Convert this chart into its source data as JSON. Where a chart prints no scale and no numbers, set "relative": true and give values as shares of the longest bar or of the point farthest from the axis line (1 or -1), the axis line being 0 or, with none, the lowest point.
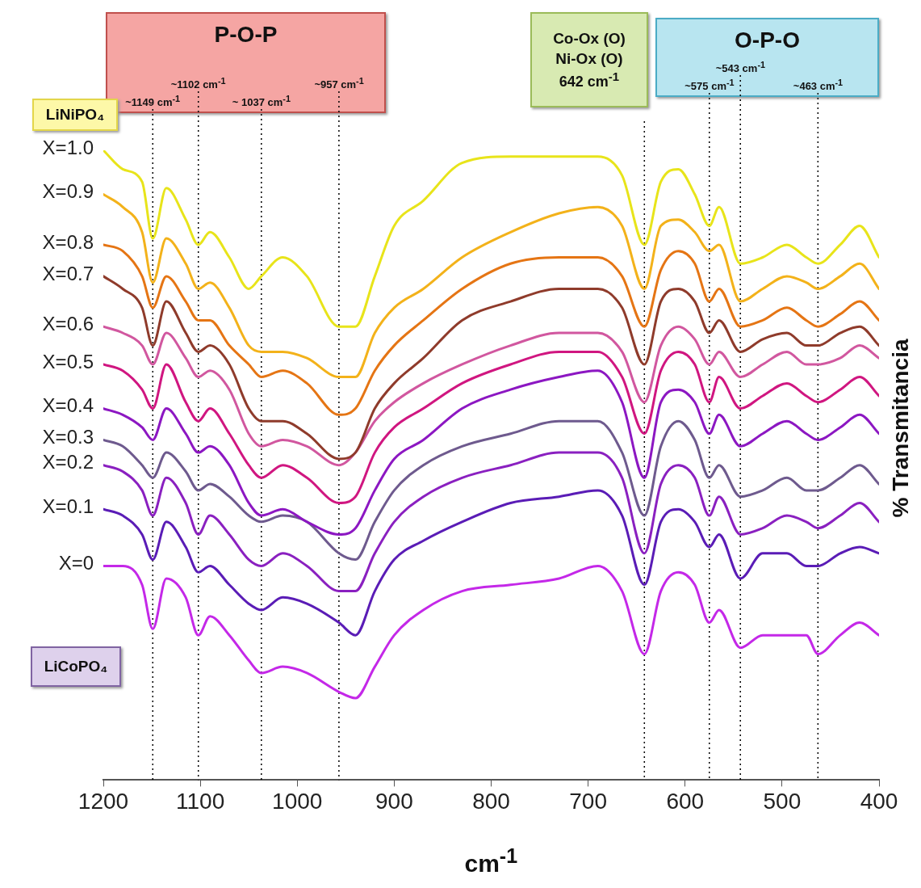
{
  "chart_data": {
    "type": "line",
    "relative": true,
    "xlabel": "cm$^{-1}$",
    "ylabel": "% Transmitancia",
    "legend": false,
    "grid": false,
    "marker": "none",
    "line_style": "solid",
    "xlim": [
      1200,
      400
    ],
    "xticks": [
      1200,
      1100,
      1000,
      900,
      800,
      700,
      600,
      500,
      400
    ],
    "x": [
      1200,
      1180,
      1160,
      1149,
      1135,
      1115,
      1102,
      1090,
      1070,
      1050,
      1037,
      1015,
      990,
      957,
      940,
      920,
      900,
      870,
      830,
      780,
      730,
      690,
      665,
      642,
      625,
      607,
      590,
      575,
      565,
      543,
      520,
      495,
      475,
      463,
      440,
      420,
      400
    ],
    "series": [
      {
        "name": "X=1.0",
        "color": "#e8e41a",
        "values": [
          1.0,
          0.97,
          0.95,
          0.86,
          0.94,
          0.89,
          0.85,
          0.87,
          0.83,
          0.78,
          0.8,
          0.83,
          0.8,
          0.72,
          0.72,
          0.8,
          0.88,
          0.92,
          0.98,
          0.99,
          0.99,
          0.99,
          0.96,
          0.85,
          0.95,
          0.97,
          0.93,
          0.88,
          0.91,
          0.82,
          0.83,
          0.85,
          0.83,
          0.82,
          0.85,
          0.88,
          0.83
        ]
      },
      {
        "name": "X=0.9",
        "color": "#f3b21a",
        "values": [
          0.93,
          0.91,
          0.87,
          0.79,
          0.86,
          0.82,
          0.78,
          0.79,
          0.75,
          0.69,
          0.68,
          0.68,
          0.67,
          0.64,
          0.64,
          0.71,
          0.75,
          0.78,
          0.83,
          0.87,
          0.9,
          0.91,
          0.88,
          0.78,
          0.88,
          0.89,
          0.87,
          0.84,
          0.85,
          0.76,
          0.78,
          0.8,
          0.79,
          0.78,
          0.8,
          0.82,
          0.78
        ]
      },
      {
        "name": "X=0.8",
        "color": "#e57514",
        "values": [
          0.85,
          0.84,
          0.8,
          0.75,
          0.8,
          0.76,
          0.73,
          0.73,
          0.69,
          0.66,
          0.64,
          0.65,
          0.63,
          0.58,
          0.59,
          0.65,
          0.69,
          0.73,
          0.78,
          0.82,
          0.83,
          0.83,
          0.8,
          0.72,
          0.81,
          0.84,
          0.82,
          0.76,
          0.78,
          0.72,
          0.73,
          0.75,
          0.73,
          0.72,
          0.74,
          0.76,
          0.73
        ]
      },
      {
        "name": "X=0.7",
        "color": "#8f3b2b",
        "values": [
          0.8,
          0.78,
          0.75,
          0.69,
          0.76,
          0.71,
          0.68,
          0.69,
          0.66,
          0.59,
          0.57,
          0.57,
          0.55,
          0.51,
          0.52,
          0.59,
          0.63,
          0.67,
          0.73,
          0.76,
          0.78,
          0.78,
          0.75,
          0.66,
          0.76,
          0.78,
          0.76,
          0.71,
          0.73,
          0.68,
          0.7,
          0.71,
          0.69,
          0.69,
          0.71,
          0.72,
          0.69
        ]
      },
      {
        "name": "X=0.6",
        "color": "#d1579f",
        "values": [
          0.72,
          0.71,
          0.69,
          0.66,
          0.71,
          0.67,
          0.64,
          0.65,
          0.62,
          0.55,
          0.53,
          0.54,
          0.53,
          0.5,
          0.52,
          0.57,
          0.6,
          0.63,
          0.66,
          0.69,
          0.71,
          0.71,
          0.68,
          0.6,
          0.69,
          0.72,
          0.7,
          0.66,
          0.68,
          0.64,
          0.66,
          0.68,
          0.66,
          0.66,
          0.67,
          0.69,
          0.67
        ]
      },
      {
        "name": "X=0.5",
        "color": "#d01680",
        "values": [
          0.66,
          0.65,
          0.62,
          0.59,
          0.66,
          0.6,
          0.57,
          0.59,
          0.55,
          0.5,
          0.48,
          0.5,
          0.48,
          0.44,
          0.45,
          0.52,
          0.56,
          0.59,
          0.63,
          0.66,
          0.68,
          0.68,
          0.64,
          0.55,
          0.65,
          0.68,
          0.66,
          0.6,
          0.64,
          0.59,
          0.61,
          0.63,
          0.61,
          0.6,
          0.62,
          0.64,
          0.61
        ]
      },
      {
        "name": "X=0.4",
        "color": "#8c17c2",
        "values": [
          0.59,
          0.58,
          0.56,
          0.54,
          0.59,
          0.55,
          0.52,
          0.53,
          0.5,
          0.44,
          0.42,
          0.43,
          0.41,
          0.39,
          0.4,
          0.46,
          0.51,
          0.54,
          0.59,
          0.62,
          0.64,
          0.65,
          0.6,
          0.48,
          0.6,
          0.62,
          0.6,
          0.55,
          0.58,
          0.53,
          0.55,
          0.57,
          0.55,
          0.54,
          0.56,
          0.58,
          0.55
        ]
      },
      {
        "name": "X=0.3",
        "color": "#6e5a8e",
        "values": [
          0.54,
          0.53,
          0.5,
          0.48,
          0.52,
          0.49,
          0.46,
          0.47,
          0.45,
          0.42,
          0.41,
          0.42,
          0.41,
          0.36,
          0.35,
          0.41,
          0.46,
          0.5,
          0.53,
          0.55,
          0.57,
          0.57,
          0.52,
          0.42,
          0.53,
          0.57,
          0.54,
          0.48,
          0.5,
          0.45,
          0.46,
          0.48,
          0.46,
          0.46,
          0.48,
          0.5,
          0.47
        ]
      },
      {
        "name": "X=0.2",
        "color": "#8a20c0",
        "values": [
          0.5,
          0.49,
          0.46,
          0.42,
          0.48,
          0.44,
          0.39,
          0.42,
          0.39,
          0.35,
          0.34,
          0.36,
          0.34,
          0.3,
          0.3,
          0.36,
          0.41,
          0.45,
          0.48,
          0.5,
          0.52,
          0.52,
          0.48,
          0.36,
          0.47,
          0.5,
          0.48,
          0.42,
          0.45,
          0.39,
          0.4,
          0.42,
          0.41,
          0.4,
          0.42,
          0.44,
          0.41
        ]
      },
      {
        "name": "X=0.1",
        "color": "#5a1cb6",
        "values": [
          0.43,
          0.42,
          0.39,
          0.35,
          0.41,
          0.37,
          0.33,
          0.34,
          0.31,
          0.28,
          0.27,
          0.29,
          0.28,
          0.25,
          0.23,
          0.3,
          0.35,
          0.38,
          0.41,
          0.44,
          0.45,
          0.46,
          0.42,
          0.31,
          0.41,
          0.43,
          0.41,
          0.37,
          0.39,
          0.32,
          0.36,
          0.36,
          0.34,
          0.34,
          0.36,
          0.37,
          0.36
        ]
      },
      {
        "name": "X=0",
        "color": "#c428e8",
        "values": [
          0.34,
          0.34,
          0.31,
          0.24,
          0.32,
          0.29,
          0.23,
          0.26,
          0.23,
          0.19,
          0.17,
          0.18,
          0.17,
          0.14,
          0.13,
          0.18,
          0.23,
          0.27,
          0.3,
          0.31,
          0.32,
          0.34,
          0.3,
          0.2,
          0.3,
          0.33,
          0.31,
          0.25,
          0.27,
          0.21,
          0.23,
          0.23,
          0.23,
          0.2,
          0.23,
          0.25,
          0.23
        ]
      }
    ],
    "ref_lines": [
      {
        "axis": "x",
        "value": 1149,
        "label": "~1149 cm$^{-1}$",
        "color": "#000000",
        "line_style": "dotted"
      },
      {
        "axis": "x",
        "value": 1102,
        "label": "~1102 cm$^{-1}$",
        "color": "#000000",
        "line_style": "dotted"
      },
      {
        "axis": "x",
        "value": 1037,
        "label": "~ 1037 cm$^{-1}$",
        "color": "#000000",
        "line_style": "dotted"
      },
      {
        "axis": "x",
        "value": 957,
        "label": "~957 cm$^{-1}$",
        "color": "#000000",
        "line_style": "dotted"
      },
      {
        "axis": "x",
        "value": 642,
        "label": "642 cm$^{-1}$",
        "color": "#000000",
        "line_style": "dotted"
      },
      {
        "axis": "x",
        "value": 575,
        "label": "~575 cm$^{-1}$",
        "color": "#000000",
        "line_style": "dotted"
      },
      {
        "axis": "x",
        "value": 543,
        "label": "~543 cm$^{-1}$",
        "color": "#000000",
        "line_style": "dotted"
      },
      {
        "axis": "x",
        "value": 463,
        "label": "~463 cm$^{-1}$",
        "color": "#000000",
        "line_style": "dotted"
      }
    ],
    "annotations": [
      "P-O-P",
      "Co-Ox (O)",
      "Ni-Ox (O)",
      "O-P-O",
      "LiNiPO₄",
      "LiCoPO₄"
    ]
  }
}
